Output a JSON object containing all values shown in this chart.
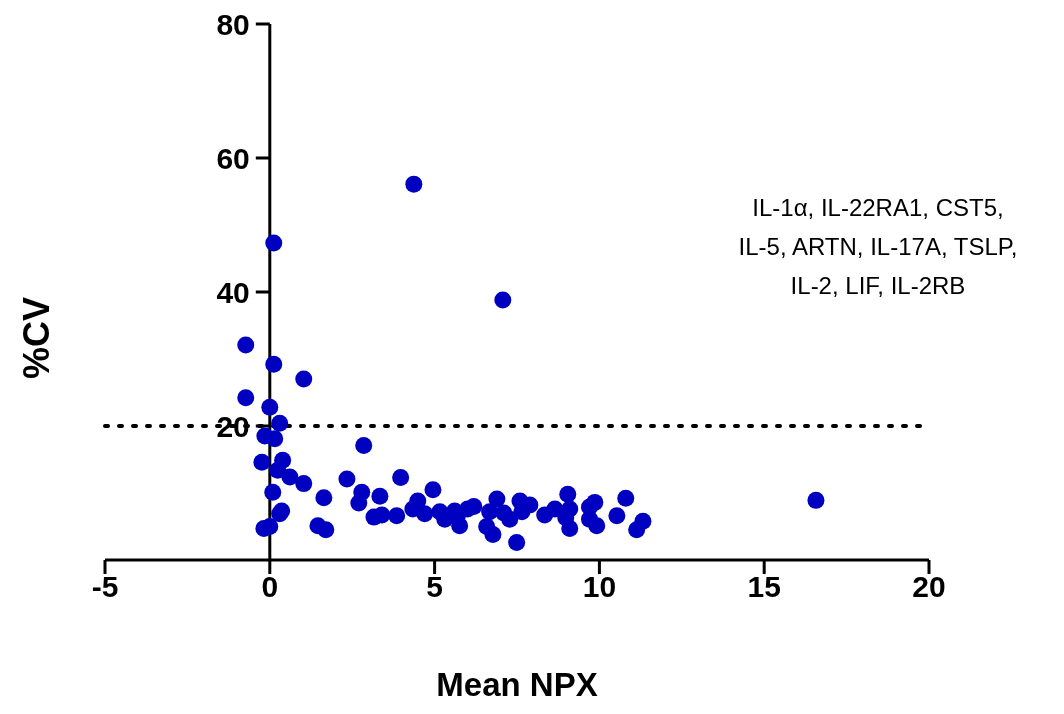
{
  "chart_data": {
    "type": "scatter",
    "xlabel": "Mean NPX",
    "ylabel": "%CV",
    "xlim": [
      -5,
      20
    ],
    "xticks": [
      -5,
      0,
      5,
      10,
      15,
      20
    ],
    "ylim": [
      0,
      80
    ],
    "yticks": [
      20,
      40,
      60,
      80
    ],
    "grid": false,
    "legend": false,
    "marker": "circle",
    "ref_lines": [
      {
        "axis": "y",
        "value": 20,
        "color": "#000000",
        "line_style": "dotted"
      }
    ],
    "annotations": [
      "IL-1α, IL-22RA1, CST5, IL-5, ARTN, IL-17A, TSLP, IL-2, LIF, IL-2RB"
    ],
    "series": [
      {
        "color": "#0000c0",
        "x": [
          4.37,
          0.12,
          7.07,
          -0.73,
          0.12,
          1.03,
          -0.73,
          0,
          0.3,
          -0.15,
          0.15,
          2.85,
          -0.24,
          0.39,
          0.24,
          0.61,
          1.03,
          2.34,
          3.97,
          0.09,
          1.64,
          2.79,
          2.7,
          3.34,
          4.95,
          0.36,
          0.3,
          -0.18,
          0,
          1.46,
          1.7,
          3.16,
          3.4,
          3.85,
          4.34,
          4.49,
          4.7,
          5.16,
          5.31,
          5.61,
          5.76,
          6.0,
          6.19,
          6.67,
          6.89,
          6.77,
          7.1,
          7.28,
          7.49,
          7.59,
          7.65,
          7.89,
          8.34,
          8.65,
          8.98,
          9.04,
          9.1,
          9.7,
          9.86,
          9.92,
          10.53,
          10.8,
          11.13,
          11.32,
          16.57,
          5.7,
          6.58,
          9.1,
          9.7
        ],
        "values": [
          56.1,
          47.3,
          38.8,
          32.1,
          29.2,
          27.0,
          24.2,
          22.8,
          20.4,
          18.5,
          18.1,
          17.1,
          14.6,
          14.9,
          13.4,
          12.4,
          11.4,
          12.1,
          12.3,
          10.1,
          9.3,
          10.1,
          8.5,
          9.5,
          10.5,
          7.3,
          6.9,
          4.7,
          5.0,
          5.1,
          4.5,
          6.4,
          6.7,
          6.6,
          7.6,
          8.8,
          6.9,
          7.2,
          6.1,
          7.3,
          5.1,
          7.6,
          8.0,
          7.2,
          9.1,
          3.8,
          7.0,
          6.1,
          2.6,
          8.8,
          7.2,
          8.2,
          6.7,
          7.6,
          6.3,
          9.8,
          7.6,
          7.9,
          8.6,
          5.1,
          6.6,
          9.2,
          4.5,
          5.8,
          8.9,
          6.7,
          5.0,
          4.7,
          6.1
        ]
      }
    ]
  }
}
